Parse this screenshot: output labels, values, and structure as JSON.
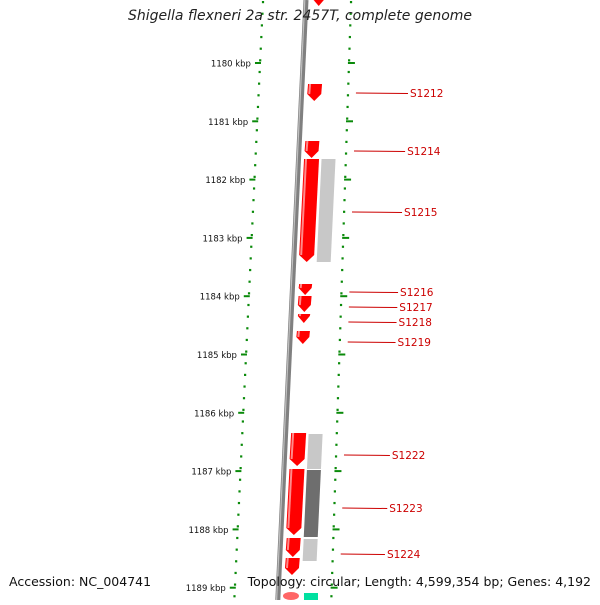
{
  "title": "Shigella flexneri 2a str. 2457T, complete genome",
  "accession_text": "Accession: NC_004741",
  "summary_text": "Topology: circular; Length: 4,599,354 bp; Genes: 4,192",
  "colors": {
    "forward_gene": "#ff0000",
    "reverse_gene_light": "#c8c8c8",
    "reverse_gene_dark": "#6e6e6e",
    "backbone": "#808080",
    "tick_dots": "#0a8a0a",
    "label": "#cc0000",
    "teal_feature": "#00e0a0"
  },
  "ticks": [
    {
      "label": "1180 kbp",
      "kbp": 1180
    },
    {
      "label": "1181 kbp",
      "kbp": 1181
    },
    {
      "label": "1182 kbp",
      "kbp": 1182
    },
    {
      "label": "1183 kbp",
      "kbp": 1183
    },
    {
      "label": "1184 kbp",
      "kbp": 1184
    },
    {
      "label": "1185 kbp",
      "kbp": 1185
    },
    {
      "label": "1186 kbp",
      "kbp": 1186
    },
    {
      "label": "1187 kbp",
      "kbp": 1187
    },
    {
      "label": "1188 kbp",
      "kbp": 1188
    },
    {
      "label": "1189 kbp",
      "kbp": 1189
    }
  ],
  "gene_labels": [
    {
      "name": "S1212"
    },
    {
      "name": "S1214"
    },
    {
      "name": "S1215"
    },
    {
      "name": "S1216"
    },
    {
      "name": "S1217"
    },
    {
      "name": "S1218"
    },
    {
      "name": "S1219"
    },
    {
      "name": "S1222"
    },
    {
      "name": "S1223"
    },
    {
      "name": "S1224"
    }
  ]
}
